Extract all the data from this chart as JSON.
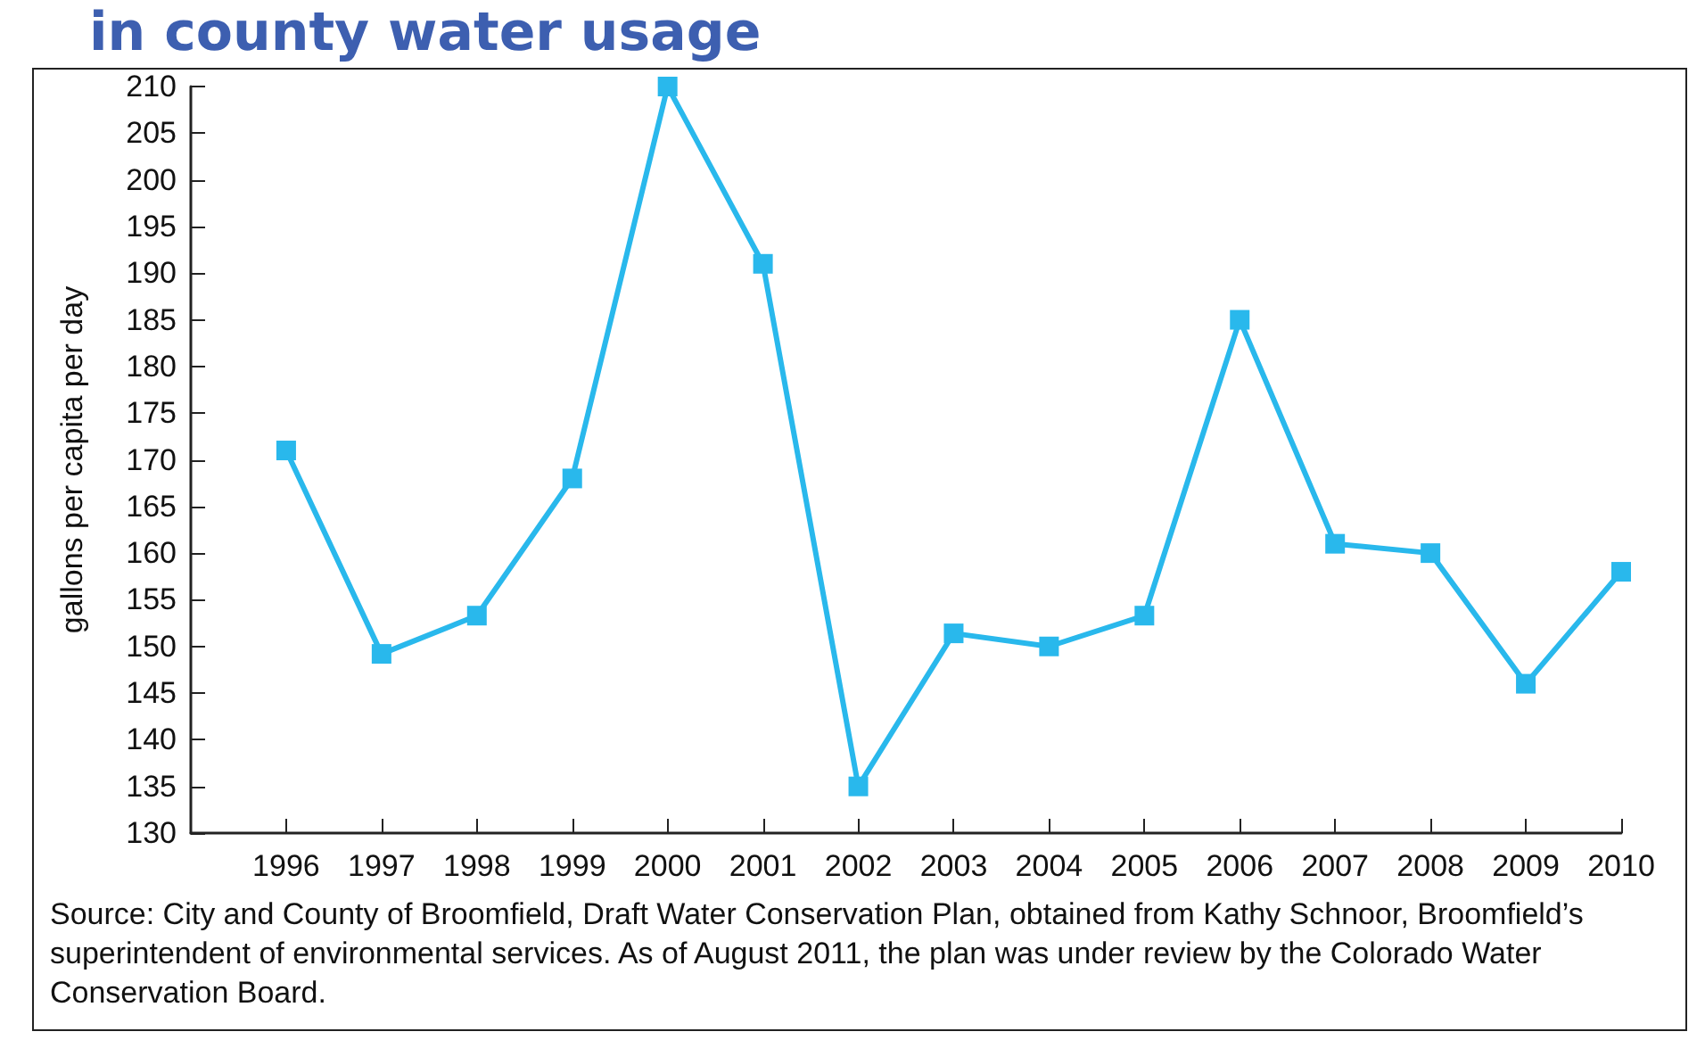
{
  "chart_data": {
    "type": "line",
    "title": "in county water usage",
    "ylabel": "gallons per capita per day",
    "x": [
      1996,
      1997,
      1998,
      1999,
      2000,
      2001,
      2002,
      2003,
      2004,
      2005,
      2006,
      2007,
      2008,
      2009,
      2010
    ],
    "series": [
      {
        "color": "#29b8ec",
        "values": [
          171,
          149.2,
          153.3,
          168,
          210,
          191,
          135,
          151.4,
          150,
          153.3,
          185,
          161,
          160,
          146,
          158
        ]
      }
    ],
    "xlim": [
      1995,
      2010
    ],
    "xticks": [
      1996,
      1997,
      1998,
      1999,
      2000,
      2001,
      2002,
      2003,
      2004,
      2005,
      2006,
      2007,
      2008,
      2009,
      2010
    ],
    "ylim": [
      130,
      210
    ],
    "yticks": [
      130,
      135,
      140,
      145,
      150,
      155,
      160,
      165,
      170,
      175,
      180,
      185,
      190,
      195,
      200,
      205,
      210
    ],
    "grid": false,
    "marker": "square",
    "line_style": "solid",
    "annotations": [
      "Source: City and County of Broomfield, Draft Water Conservation Plan, obtained from Kathy Schnoor, Broomfield’s superintendent of environmental services. As of August 2011, the plan was under review by the Colorado Water Conservation Board."
    ]
  }
}
